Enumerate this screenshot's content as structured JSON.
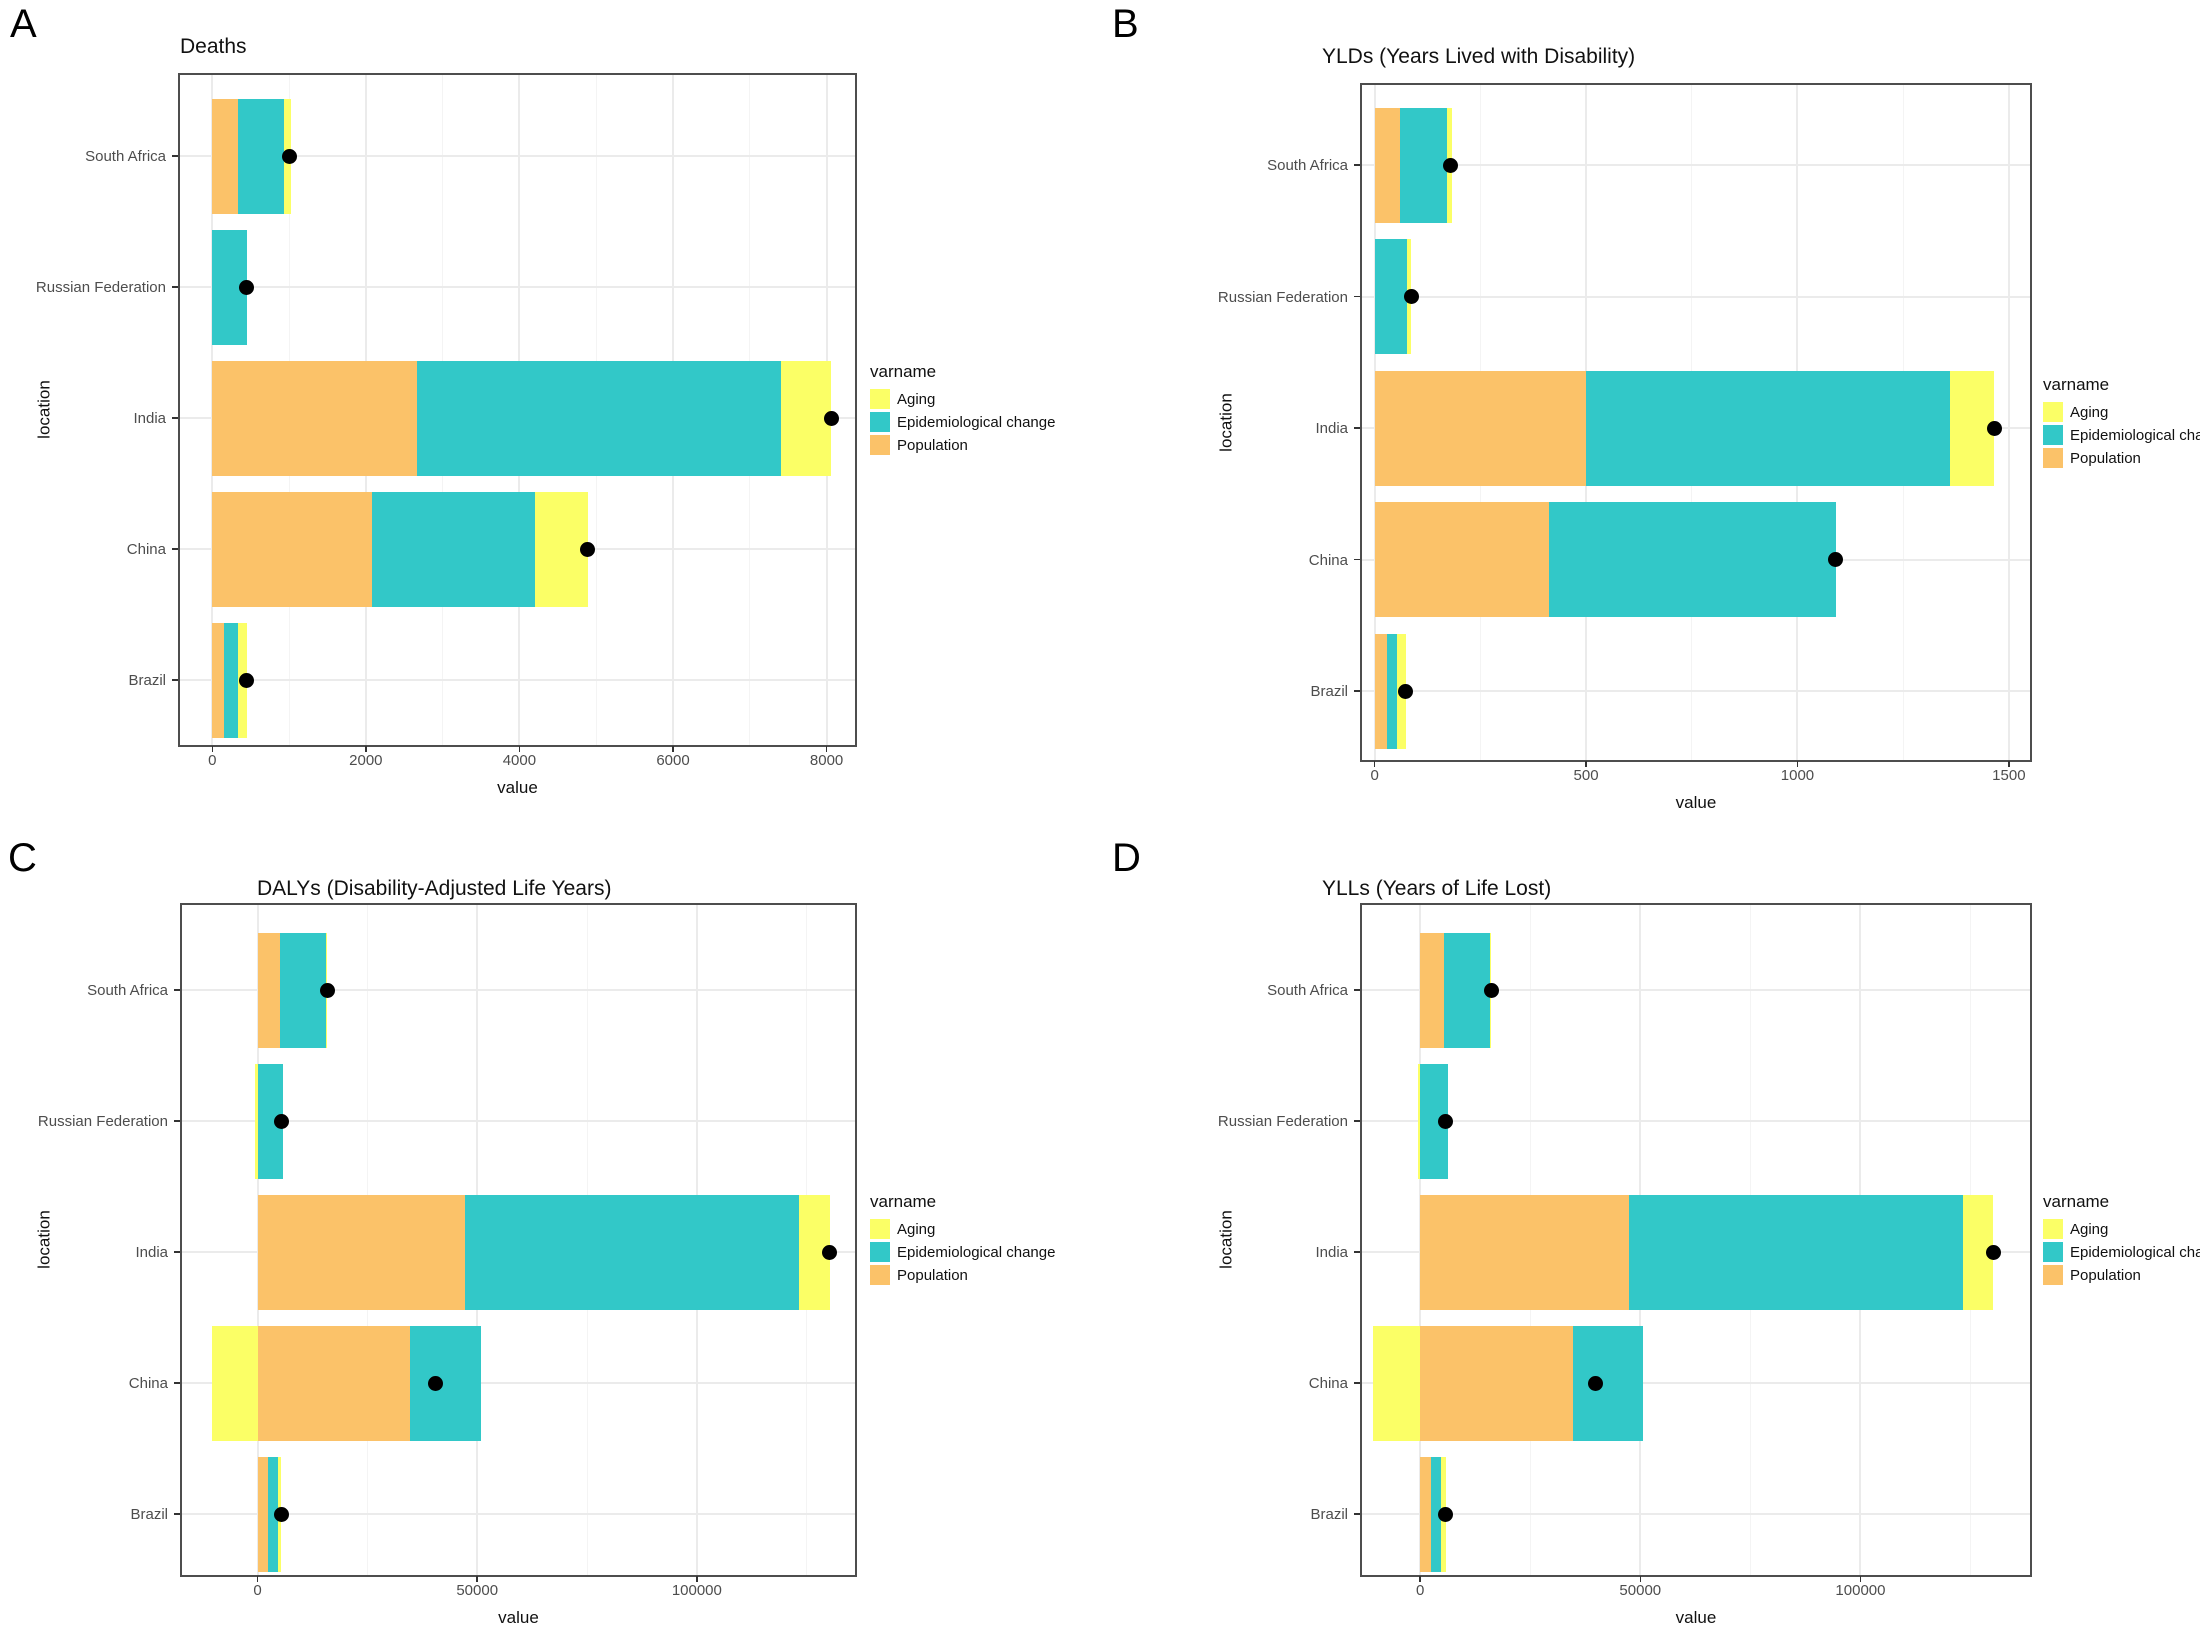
{
  "figure": {
    "panel_letters": [
      "A",
      "B",
      "C",
      "D"
    ],
    "legend": {
      "title": "varname",
      "items": [
        {
          "label": "Aging",
          "color": "#FBFF66"
        },
        {
          "label": "Epidemiological change",
          "color": "#32C8C8"
        },
        {
          "label": "Population",
          "color": "#FBC269"
        }
      ]
    },
    "colors": {
      "aging": "#FBFF66",
      "epidemiological_change": "#32C8C8",
      "population": "#FBC269",
      "net_dot": "#000000",
      "grid_major": "#EBEBEB",
      "grid_minor": "#F4F4F4",
      "panel_border": "#4D4D4D",
      "tick_label": "#4D4D4D"
    }
  },
  "chart_data": [
    {
      "id": "A",
      "letter": "A",
      "title": "Deaths",
      "type": "bar",
      "subtype": "horizontal-stacked-with-net-point",
      "xlabel": "value",
      "ylabel": "location",
      "categories": [
        "South Africa",
        "Russian Federation",
        "India",
        "China",
        "Brazil"
      ],
      "xticks": [
        0,
        2000,
        4000,
        6000,
        8000
      ],
      "xlim": [
        -420,
        8370
      ],
      "grid": true,
      "legend_position": "right",
      "series": [
        {
          "name": "Aging",
          "values": [
            80,
            0,
            650,
            690,
            115
          ]
        },
        {
          "name": "Epidemiological change",
          "values": [
            610,
            450,
            4750,
            2120,
            185
          ]
        },
        {
          "name": "Population",
          "values": [
            330,
            0,
            2660,
            2080,
            150
          ]
        }
      ],
      "net_points": [
        1010,
        445,
        8060,
        4890,
        450
      ]
    },
    {
      "id": "B",
      "letter": "B",
      "title": "YLDs (Years Lived with Disability)",
      "type": "bar",
      "subtype": "horizontal-stacked-with-net-point",
      "xlabel": "value",
      "ylabel": "location",
      "categories": [
        "South Africa",
        "Russian Federation",
        "India",
        "China",
        "Brazil"
      ],
      "xticks": [
        0,
        500,
        1000,
        1500
      ],
      "xlim": [
        -30,
        1550
      ],
      "grid": true,
      "legend_position": "right",
      "series": [
        {
          "name": "Aging",
          "values": [
            13,
            10,
            105,
            0,
            23
          ]
        },
        {
          "name": "Epidemiological change",
          "values": [
            110,
            77,
            860,
            680,
            24
          ]
        },
        {
          "name": "Population",
          "values": [
            60,
            0,
            500,
            412,
            28
          ]
        }
      ],
      "net_points": [
        180,
        87,
        1465,
        1090,
        73
      ]
    },
    {
      "id": "C",
      "letter": "C",
      "title": "DALYs (Disability-Adjusted Life Years)",
      "type": "bar",
      "subtype": "horizontal-stacked-with-net-point",
      "xlabel": "value",
      "ylabel": "location",
      "categories": [
        "South Africa",
        "Russian Federation",
        "India",
        "China",
        "Brazil"
      ],
      "xticks": [
        0,
        50000,
        100000
      ],
      "xlim": [
        -17200,
        136000
      ],
      "grid": true,
      "legend_position": "right",
      "series": [
        {
          "name": "Aging",
          "values": [
            400,
            -500,
            7000,
            -10400,
            650
          ]
        },
        {
          "name": "Epidemiological change",
          "values": [
            10500,
            5900,
            76000,
            16200,
            2270
          ]
        },
        {
          "name": "Population",
          "values": [
            5000,
            0,
            47300,
            34700,
            2440
          ]
        }
      ],
      "net_points": [
        15900,
        5450,
        130300,
        40500,
        5360
      ]
    },
    {
      "id": "D",
      "letter": "D",
      "title": "YLLs (Years of Life Lost)",
      "type": "bar",
      "subtype": "horizontal-stacked-with-net-point",
      "xlabel": "value",
      "ylabel": "location",
      "categories": [
        "South Africa",
        "Russian Federation",
        "India",
        "China",
        "Brazil"
      ],
      "xticks": [
        0,
        50000,
        100000
      ],
      "xlim": [
        -13200,
        138500
      ],
      "grid": true,
      "legend_position": "right",
      "series": [
        {
          "name": "Aging",
          "values": [
            300,
            -500,
            7000,
            -10700,
            1100
          ]
        },
        {
          "name": "Epidemiological change",
          "values": [
            10300,
            6300,
            75700,
            15800,
            2200
          ]
        },
        {
          "name": "Population",
          "values": [
            5500,
            0,
            47500,
            34800,
            2500
          ]
        }
      ],
      "net_points": [
        16100,
        5800,
        130200,
        39900,
        5800
      ]
    }
  ]
}
